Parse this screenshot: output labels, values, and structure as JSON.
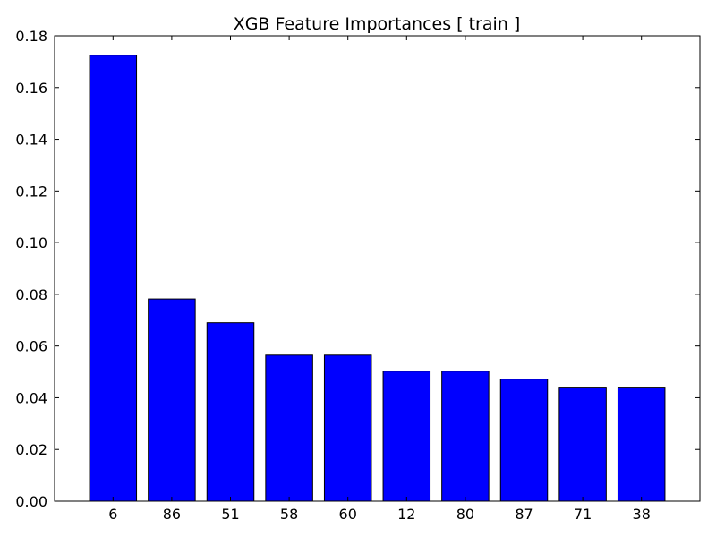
{
  "chart_data": {
    "type": "bar",
    "title": "XGB Feature Importances [ train ]",
    "xlabel": "",
    "ylabel": "",
    "categories": [
      "6",
      "86",
      "51",
      "58",
      "60",
      "12",
      "80",
      "87",
      "71",
      "38"
    ],
    "values": [
      0.1725,
      0.0782,
      0.069,
      0.0565,
      0.0565,
      0.0503,
      0.0503,
      0.0472,
      0.0441,
      0.0441
    ],
    "ylim": [
      0,
      0.18
    ],
    "yticks": [
      "0.00",
      "0.02",
      "0.04",
      "0.06",
      "0.08",
      "0.10",
      "0.12",
      "0.14",
      "0.16",
      "0.18"
    ],
    "bar_color": "#0000ff",
    "edge_color": "#000000",
    "grid": false,
    "legend": "none"
  }
}
